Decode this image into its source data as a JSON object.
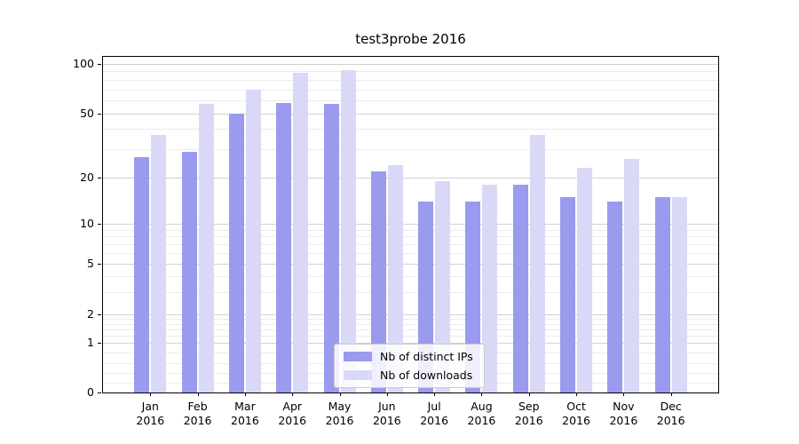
{
  "chart_data": {
    "type": "bar",
    "title": "test3probe 2016",
    "categories": [
      "Jan",
      "Feb",
      "Mar",
      "Apr",
      "May",
      "Jun",
      "Jul",
      "Aug",
      "Sep",
      "Oct",
      "Nov",
      "Dec"
    ],
    "year": "2016",
    "series": [
      {
        "name": "Nb of distinct IPs",
        "color": "#9a9aee",
        "values": [
          27,
          29,
          50,
          58,
          57,
          22,
          14,
          14,
          18,
          15,
          14,
          15
        ]
      },
      {
        "name": "Nb of downloads",
        "color": "#d9d9f7",
        "values": [
          37,
          57,
          70,
          88,
          92,
          24,
          19,
          18,
          37,
          23,
          26,
          15
        ]
      }
    ],
    "y_axis": {
      "scale": "symlog",
      "major_ticks": [
        0,
        1,
        2,
        5,
        10,
        20,
        50,
        100
      ],
      "minor_ticks": [
        0.2,
        0.4,
        0.6,
        0.8,
        1.2,
        1.4,
        1.6,
        1.8,
        3,
        4,
        6,
        7,
        8,
        9,
        30,
        40,
        60,
        70,
        80,
        90
      ],
      "range": [
        0,
        110
      ]
    },
    "legend": {
      "position": "lower center"
    },
    "grid": true
  },
  "colors": {
    "major_grid": "#d2d2d2",
    "minor_grid": "#ececec",
    "axis": "#000000",
    "background": "#ffffff"
  }
}
